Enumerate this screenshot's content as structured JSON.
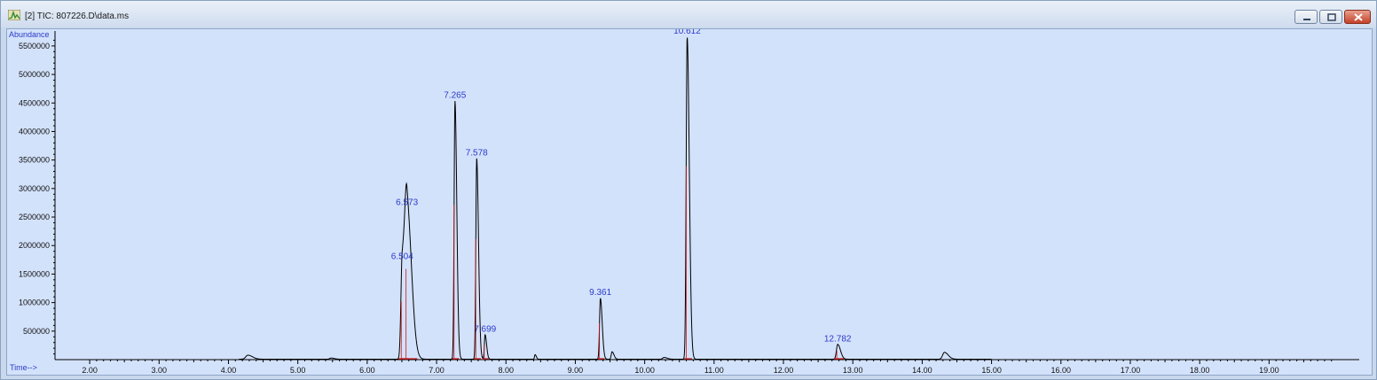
{
  "window": {
    "title": "[2] TIC: 807226.D\\data.ms",
    "app_icon": "chromatogram-app-icon",
    "buttons": [
      {
        "name": "minimize-button",
        "icon": "minimize-icon"
      },
      {
        "name": "maximize-button",
        "icon": "maximize-icon"
      },
      {
        "name": "close-button",
        "icon": "close-icon"
      }
    ],
    "colors": {
      "plot_bg": "#d3e2fb",
      "trace": "#000000",
      "baseline_mark": "#d01818",
      "label": "#2b3ac9"
    }
  },
  "chart_data": {
    "type": "line",
    "ylabel": "Abundance",
    "xlabel": "Time-->",
    "xlim": [
      1.5,
      20.3
    ],
    "ylim": [
      0,
      5700000
    ],
    "x_ticks": [
      2.0,
      3.0,
      4.0,
      5.0,
      6.0,
      7.0,
      8.0,
      9.0,
      10.0,
      11.0,
      12.0,
      13.0,
      14.0,
      15.0,
      16.0,
      17.0,
      18.0,
      19.0
    ],
    "x_tick_labels": [
      "2.00",
      "3.00",
      "4.00",
      "5.00",
      "6.00",
      "7.00",
      "8.00",
      "9.00",
      "10.00",
      "11.00",
      "12.00",
      "13.00",
      "14.00",
      "15.00",
      "16.00",
      "17.00",
      "18.00",
      "19.00"
    ],
    "y_ticks": [
      500000,
      1000000,
      1500000,
      2000000,
      2500000,
      3000000,
      3500000,
      4000000,
      4500000,
      5000000,
      5500000
    ],
    "y_tick_labels": [
      "500000",
      "1000000",
      "1500000",
      "2000000",
      "2500000",
      "3000000",
      "3500000",
      "4000000",
      "4500000",
      "5000000",
      "5500000"
    ],
    "peaks": [
      {
        "label": "6.504",
        "rt": 6.504,
        "height": 1700000,
        "width": 0.018
      },
      {
        "label": "6.573",
        "rt": 6.573,
        "height": 2650000,
        "width": 0.03
      },
      {
        "label": "7.265",
        "rt": 7.265,
        "height": 4530000,
        "width": 0.012
      },
      {
        "label": "7.578",
        "rt": 7.578,
        "height": 3520000,
        "width": 0.012
      },
      {
        "label": "7.699",
        "rt": 7.699,
        "height": 430000,
        "width": 0.01
      },
      {
        "label": "9.361",
        "rt": 9.361,
        "height": 1070000,
        "width": 0.012
      },
      {
        "label": "10.612",
        "rt": 10.612,
        "height": 5650000,
        "width": 0.014
      },
      {
        "label": "12.782",
        "rt": 12.782,
        "height": 260000,
        "width": 0.018
      }
    ],
    "minor_peaks": [
      {
        "rt": 4.28,
        "height": 70000,
        "width": 0.03
      },
      {
        "rt": 5.48,
        "height": 20000,
        "width": 0.02
      },
      {
        "rt": 8.42,
        "height": 80000,
        "width": 0.008
      },
      {
        "rt": 9.53,
        "height": 130000,
        "width": 0.012
      },
      {
        "rt": 10.28,
        "height": 30000,
        "width": 0.02
      },
      {
        "rt": 14.32,
        "height": 120000,
        "width": 0.025
      }
    ]
  }
}
